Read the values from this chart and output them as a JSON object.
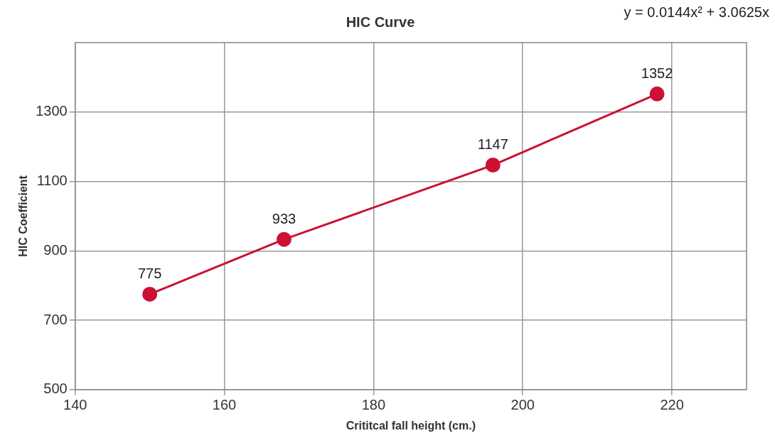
{
  "chart_data": {
    "type": "line",
    "title": "HIC Curve",
    "xlabel": "Crititcal fall height (cm.)",
    "ylabel": "HIC Coefficient",
    "x": [
      150,
      168,
      196,
      218
    ],
    "series": [
      {
        "color": "#cc1133",
        "values": [
          775,
          933,
          1147,
          1352
        ]
      }
    ],
    "xlim": [
      140,
      230
    ],
    "xticks": [
      140,
      160,
      180,
      200,
      220
    ],
    "ylim": [
      500,
      1500
    ],
    "yticks": [
      500,
      700,
      900,
      1100,
      1300
    ],
    "grid": true,
    "legend": false,
    "marker": "circle",
    "line_style": "solid",
    "data_labels": true,
    "annotations": [
      "y = 0.0144x² + 3.0625x"
    ]
  }
}
